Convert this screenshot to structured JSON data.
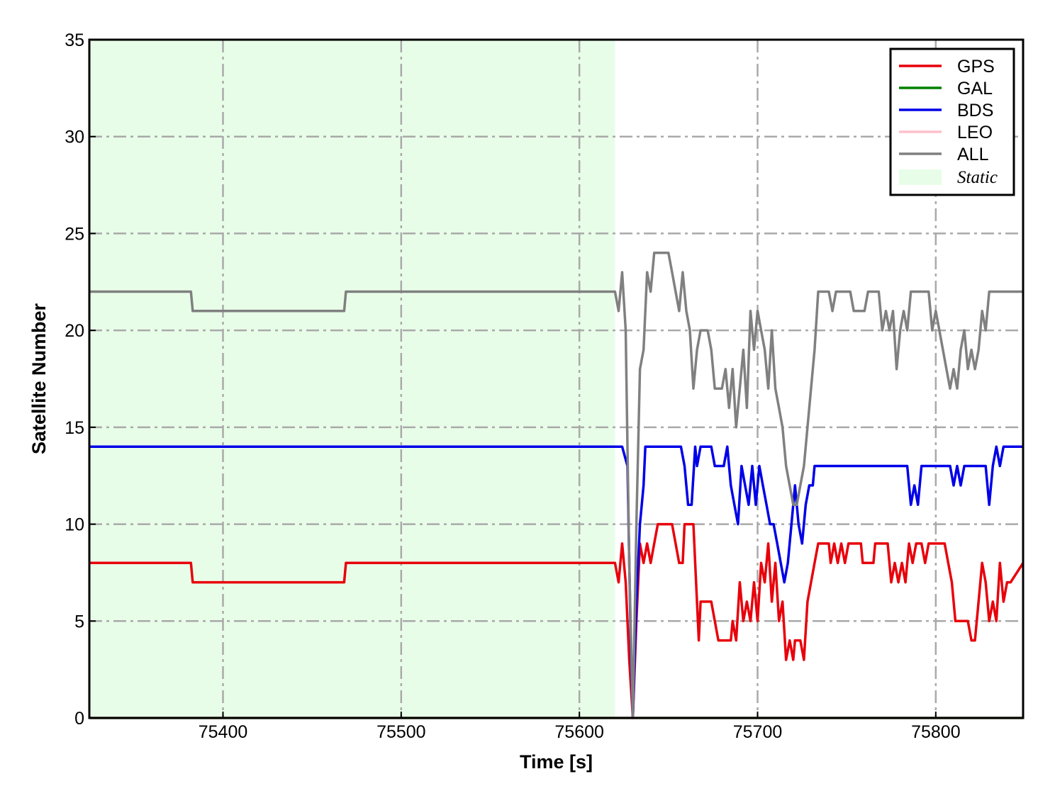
{
  "chart_data": {
    "type": "line",
    "title": "",
    "xlabel": "Time [s]",
    "ylabel": "Satellite Number",
    "xlim": [
      75325,
      75849
    ],
    "ylim": [
      0,
      35
    ],
    "xticks": [
      75400,
      75500,
      75600,
      75700,
      75800
    ],
    "yticks": [
      0,
      5,
      10,
      15,
      20,
      25,
      30,
      35
    ],
    "grid": true,
    "legend_position": "top-right",
    "shaded_region": {
      "label": "Static",
      "x_start": 75325,
      "x_end": 75620,
      "color": "#e8fde8"
    },
    "series": [
      {
        "name": "GPS",
        "color": "#e8000b",
        "points": [
          [
            75325,
            8
          ],
          [
            75382,
            8
          ],
          [
            75383,
            7
          ],
          [
            75468,
            7
          ],
          [
            75469,
            8
          ],
          [
            75620,
            8
          ],
          [
            75622,
            7
          ],
          [
            75624,
            9
          ],
          [
            75626,
            7
          ],
          [
            75628,
            3
          ],
          [
            75630,
            0
          ],
          [
            75632,
            5
          ],
          [
            75634,
            9
          ],
          [
            75636,
            8
          ],
          [
            75638,
            9
          ],
          [
            75640,
            8
          ],
          [
            75642,
            9
          ],
          [
            75644,
            10
          ],
          [
            75652,
            10
          ],
          [
            75654,
            9
          ],
          [
            75656,
            8
          ],
          [
            75658,
            8
          ],
          [
            75659,
            10
          ],
          [
            75664,
            10
          ],
          [
            75665,
            8
          ],
          [
            75667,
            4
          ],
          [
            75668,
            6
          ],
          [
            75674,
            6
          ],
          [
            75676,
            5
          ],
          [
            75678,
            4
          ],
          [
            75685,
            4
          ],
          [
            75686,
            5
          ],
          [
            75688,
            4
          ],
          [
            75690,
            7
          ],
          [
            75692,
            5
          ],
          [
            75694,
            6
          ],
          [
            75696,
            5
          ],
          [
            75698,
            7
          ],
          [
            75700,
            5
          ],
          [
            75702,
            8
          ],
          [
            75704,
            7
          ],
          [
            75706,
            9
          ],
          [
            75708,
            6
          ],
          [
            75710,
            8
          ],
          [
            75712,
            5
          ],
          [
            75714,
            6
          ],
          [
            75716,
            3
          ],
          [
            75718,
            4
          ],
          [
            75720,
            3
          ],
          [
            75721,
            4
          ],
          [
            75724,
            4
          ],
          [
            75726,
            3
          ],
          [
            75728,
            6
          ],
          [
            75732,
            8
          ],
          [
            75734,
            9
          ],
          [
            75740,
            9
          ],
          [
            75741,
            8
          ],
          [
            75743,
            9
          ],
          [
            75745,
            8
          ],
          [
            75747,
            9
          ],
          [
            75749,
            8
          ],
          [
            75751,
            9
          ],
          [
            75758,
            9
          ],
          [
            75759,
            8
          ],
          [
            75765,
            8
          ],
          [
            75766,
            9
          ],
          [
            75773,
            9
          ],
          [
            75775,
            7
          ],
          [
            75777,
            8
          ],
          [
            75779,
            7
          ],
          [
            75781,
            8
          ],
          [
            75783,
            7
          ],
          [
            75785,
            9
          ],
          [
            75787,
            8
          ],
          [
            75789,
            9
          ],
          [
            75792,
            9
          ],
          [
            75794,
            8
          ],
          [
            75796,
            9
          ],
          [
            75805,
            9
          ],
          [
            75807,
            8
          ],
          [
            75809,
            7
          ],
          [
            75811,
            5
          ],
          [
            75818,
            5
          ],
          [
            75820,
            4
          ],
          [
            75822,
            4
          ],
          [
            75824,
            6
          ],
          [
            75826,
            8
          ],
          [
            75828,
            7
          ],
          [
            75830,
            5
          ],
          [
            75832,
            6
          ],
          [
            75834,
            5
          ],
          [
            75836,
            8
          ],
          [
            75838,
            6
          ],
          [
            75840,
            7
          ],
          [
            75842,
            7
          ],
          [
            75849,
            8
          ]
        ]
      },
      {
        "name": "GAL",
        "color": "#008000",
        "points": [
          [
            75325,
            0
          ],
          [
            75849,
            0
          ]
        ]
      },
      {
        "name": "BDS",
        "color": "#0000e8",
        "points": [
          [
            75325,
            14
          ],
          [
            75624,
            14
          ],
          [
            75627,
            13
          ],
          [
            75629,
            3
          ],
          [
            75630,
            0
          ],
          [
            75632,
            6
          ],
          [
            75634,
            10
          ],
          [
            75636,
            12
          ],
          [
            75637,
            14
          ],
          [
            75657,
            14
          ],
          [
            75659,
            13
          ],
          [
            75661,
            11
          ],
          [
            75663,
            11
          ],
          [
            75665,
            14
          ],
          [
            75666,
            13
          ],
          [
            75668,
            14
          ],
          [
            75674,
            14
          ],
          [
            75676,
            13
          ],
          [
            75681,
            13
          ],
          [
            75683,
            14
          ],
          [
            75685,
            12
          ],
          [
            75687,
            11
          ],
          [
            75689,
            10
          ],
          [
            75691,
            13
          ],
          [
            75693,
            12
          ],
          [
            75695,
            11
          ],
          [
            75697,
            13
          ],
          [
            75699,
            11
          ],
          [
            75701,
            13
          ],
          [
            75703,
            12
          ],
          [
            75705,
            11
          ],
          [
            75707,
            10
          ],
          [
            75709,
            10
          ],
          [
            75711,
            9
          ],
          [
            75713,
            8
          ],
          [
            75715,
            7
          ],
          [
            75717,
            8
          ],
          [
            75719,
            10
          ],
          [
            75721,
            12
          ],
          [
            75723,
            10
          ],
          [
            75725,
            9
          ],
          [
            75727,
            11
          ],
          [
            75729,
            12
          ],
          [
            75731,
            12
          ],
          [
            75732,
            13
          ],
          [
            75784,
            13
          ],
          [
            75786,
            11
          ],
          [
            75788,
            12
          ],
          [
            75790,
            11
          ],
          [
            75792,
            13
          ],
          [
            75808,
            13
          ],
          [
            75810,
            12
          ],
          [
            75812,
            13
          ],
          [
            75814,
            12
          ],
          [
            75816,
            13
          ],
          [
            75828,
            13
          ],
          [
            75830,
            11
          ],
          [
            75832,
            13
          ],
          [
            75834,
            14
          ],
          [
            75836,
            13
          ],
          [
            75838,
            14
          ],
          [
            75849,
            14
          ]
        ]
      },
      {
        "name": "LEO",
        "color": "#ffc0cb",
        "points": [
          [
            75325,
            0
          ],
          [
            75849,
            0
          ]
        ]
      },
      {
        "name": "ALL",
        "color": "#808080",
        "points": [
          [
            75325,
            22
          ],
          [
            75382,
            22
          ],
          [
            75383,
            21
          ],
          [
            75468,
            21
          ],
          [
            75469,
            22
          ],
          [
            75620,
            22
          ],
          [
            75622,
            21
          ],
          [
            75624,
            23
          ],
          [
            75626,
            20
          ],
          [
            75628,
            8
          ],
          [
            75630,
            0
          ],
          [
            75632,
            10
          ],
          [
            75634,
            18
          ],
          [
            75636,
            19
          ],
          [
            75638,
            23
          ],
          [
            75640,
            22
          ],
          [
            75642,
            24
          ],
          [
            75650,
            24
          ],
          [
            75652,
            23
          ],
          [
            75654,
            22
          ],
          [
            75656,
            21
          ],
          [
            75658,
            23
          ],
          [
            75660,
            21
          ],
          [
            75662,
            20
          ],
          [
            75664,
            17
          ],
          [
            75666,
            19
          ],
          [
            75668,
            20
          ],
          [
            75672,
            20
          ],
          [
            75674,
            19
          ],
          [
            75676,
            17
          ],
          [
            75680,
            17
          ],
          [
            75682,
            18
          ],
          [
            75684,
            16
          ],
          [
            75686,
            18
          ],
          [
            75688,
            15
          ],
          [
            75690,
            17
          ],
          [
            75692,
            19
          ],
          [
            75694,
            16
          ],
          [
            75696,
            21
          ],
          [
            75698,
            19
          ],
          [
            75700,
            21
          ],
          [
            75702,
            20
          ],
          [
            75704,
            19
          ],
          [
            75706,
            17
          ],
          [
            75708,
            20
          ],
          [
            75710,
            17
          ],
          [
            75712,
            16
          ],
          [
            75714,
            15
          ],
          [
            75716,
            13
          ],
          [
            75718,
            12
          ],
          [
            75720,
            11
          ],
          [
            75722,
            11
          ],
          [
            75724,
            12
          ],
          [
            75726,
            13
          ],
          [
            75728,
            15
          ],
          [
            75730,
            17
          ],
          [
            75732,
            19
          ],
          [
            75734,
            22
          ],
          [
            75740,
            22
          ],
          [
            75742,
            21
          ],
          [
            75744,
            22
          ],
          [
            75752,
            22
          ],
          [
            75754,
            21
          ],
          [
            75760,
            21
          ],
          [
            75762,
            22
          ],
          [
            75768,
            22
          ],
          [
            75770,
            20
          ],
          [
            75772,
            21
          ],
          [
            75774,
            20
          ],
          [
            75776,
            21
          ],
          [
            75778,
            18
          ],
          [
            75780,
            20
          ],
          [
            75782,
            21
          ],
          [
            75784,
            20
          ],
          [
            75786,
            22
          ],
          [
            75796,
            22
          ],
          [
            75798,
            20
          ],
          [
            75800,
            21
          ],
          [
            75802,
            20
          ],
          [
            75804,
            19
          ],
          [
            75806,
            18
          ],
          [
            75808,
            17
          ],
          [
            75810,
            18
          ],
          [
            75812,
            17
          ],
          [
            75814,
            19
          ],
          [
            75816,
            20
          ],
          [
            75818,
            18
          ],
          [
            75820,
            19
          ],
          [
            75822,
            18
          ],
          [
            75824,
            19
          ],
          [
            75826,
            21
          ],
          [
            75828,
            20
          ],
          [
            75830,
            22
          ],
          [
            75849,
            22
          ]
        ]
      }
    ]
  }
}
